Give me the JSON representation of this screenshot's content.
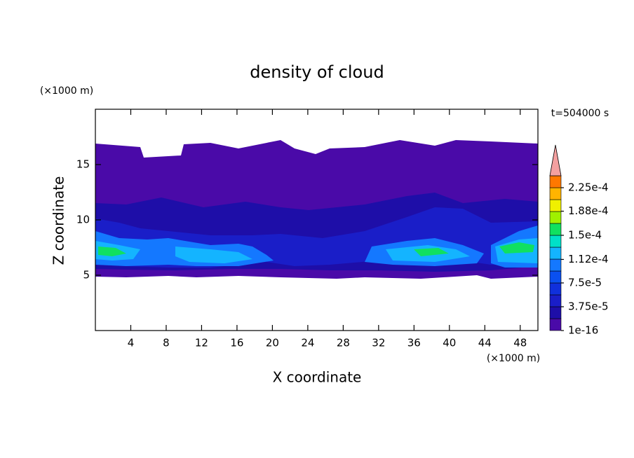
{
  "chart_data": {
    "type": "contour",
    "title": "density of cloud",
    "xlabel": "X coordinate",
    "ylabel": "Z coordinate",
    "x_unit": "(×1000 m)",
    "y_unit": "(×1000 m)",
    "annotation": "t=504000 s",
    "xlim": [
      0,
      50
    ],
    "xticks": [
      4,
      8,
      12,
      16,
      20,
      24,
      28,
      32,
      36,
      40,
      44,
      48
    ],
    "ylim": [
      0,
      20
    ],
    "yticks": [
      5,
      10,
      15
    ],
    "colorbar": {
      "clim": [
        0,
        0.00024375
      ],
      "colors": [
        "#4a0aa8",
        "#1e0ea8",
        "#1a1ec8",
        "#1030dc",
        "#0a50f0",
        "#1478ff",
        "#14b4ff",
        "#00e0c8",
        "#10e060",
        "#a0f000",
        "#f0f000",
        "#ffb400",
        "#ff7800"
      ],
      "extend_color": "#f4a0a0",
      "ticks": [
        {
          "value": 1e-16,
          "label": "1e-16"
        },
        {
          "value": 3.75e-05,
          "label": "3.75e-5"
        },
        {
          "value": 7.5e-05,
          "label": "7.5e-5"
        },
        {
          "value": 0.000112,
          "label": "1.12e-4"
        },
        {
          "value": 0.00015,
          "label": "1.5e-4"
        },
        {
          "value": 0.000188,
          "label": "1.88e-4"
        },
        {
          "value": 0.000225,
          "label": "2.25e-4"
        }
      ]
    }
  }
}
